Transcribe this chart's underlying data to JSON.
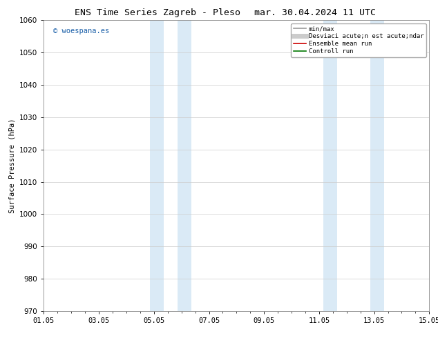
{
  "title_left": "ENS Time Series Zagreb - Pleso",
  "title_right": "mar. 30.04.2024 11 UTC",
  "ylabel": "Surface Pressure (hPa)",
  "ylim": [
    970,
    1060
  ],
  "yticks": [
    970,
    980,
    990,
    1000,
    1010,
    1020,
    1030,
    1040,
    1050,
    1060
  ],
  "xlim": [
    0,
    14
  ],
  "xtick_labels": [
    "01.05",
    "03.05",
    "05.05",
    "07.05",
    "09.05",
    "11.05",
    "13.05",
    "15.05"
  ],
  "xtick_positions_days": [
    0,
    2,
    4,
    6,
    8,
    10,
    12,
    14
  ],
  "shaded_bands": [
    {
      "x_start_day": 3.85,
      "x_end_day": 4.35,
      "color": "#daeaf6",
      "alpha": 1.0
    },
    {
      "x_start_day": 4.85,
      "x_end_day": 5.35,
      "color": "#daeaf6",
      "alpha": 1.0
    },
    {
      "x_start_day": 10.15,
      "x_end_day": 10.65,
      "color": "#daeaf6",
      "alpha": 1.0
    },
    {
      "x_start_day": 11.85,
      "x_end_day": 12.35,
      "color": "#daeaf6",
      "alpha": 1.0
    }
  ],
  "watermark": "© woespana.es",
  "watermark_color": "#1a5fa8",
  "legend_items": [
    {
      "label": "min/max",
      "color": "#999999",
      "lw": 1.2
    },
    {
      "label": "Desviaci acute;n est acute;ndar",
      "color": "#cccccc",
      "lw": 5
    },
    {
      "label": "Ensemble mean run",
      "color": "#cc0000",
      "lw": 1.2
    },
    {
      "label": "Controll run",
      "color": "#007700",
      "lw": 1.2
    }
  ],
  "background_color": "#ffffff",
  "plot_background": "#ffffff",
  "grid_color": "#cccccc",
  "title_fontsize": 9.5,
  "ylabel_fontsize": 7.5,
  "tick_fontsize": 7.5,
  "watermark_fontsize": 7.5,
  "legend_fontsize": 6.5
}
